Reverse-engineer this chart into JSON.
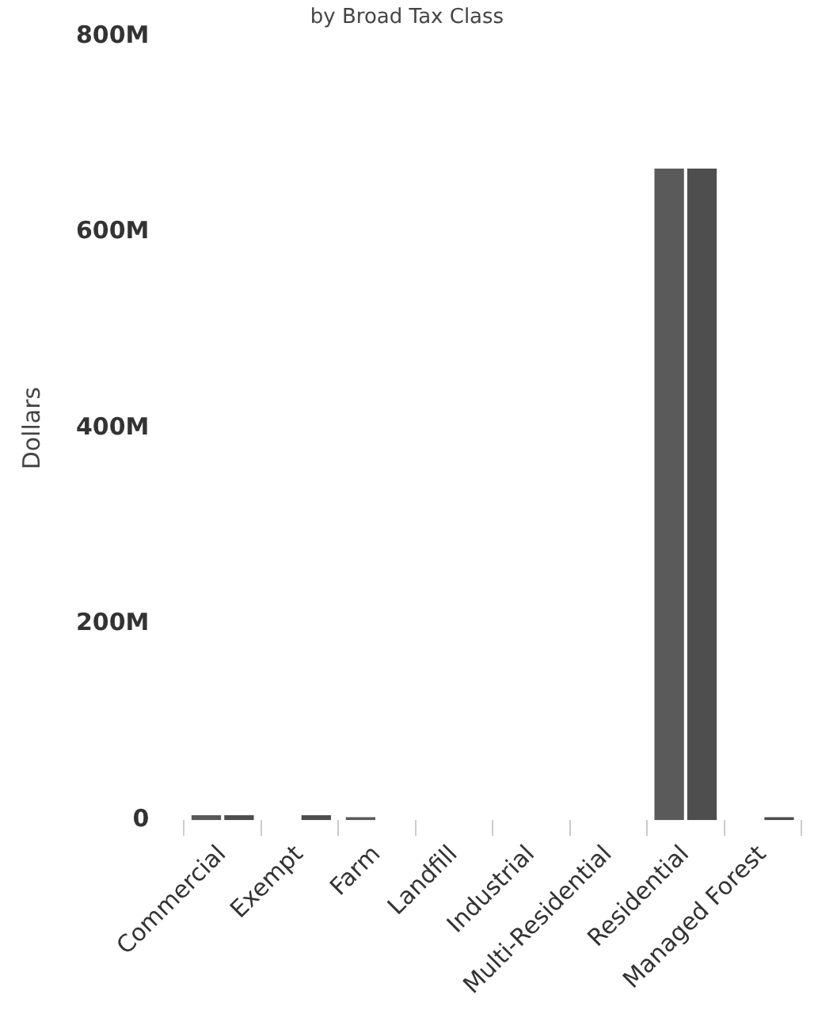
{
  "chart_data": {
    "type": "bar",
    "subtitle": "by Broad Tax Class",
    "ylabel": "Dollars",
    "categories": [
      "Commercial",
      "Exempt",
      "Farm",
      "Landfill",
      "Industrial",
      "Multi-Residential",
      "Residential",
      "Managed Forest"
    ],
    "series": [
      {
        "color": "#5a5a5a",
        "values": [
          5000000,
          null,
          3000000,
          null,
          null,
          null,
          665000000,
          null
        ]
      },
      {
        "color": "#4e4e4e",
        "values": [
          5000000,
          5000000,
          null,
          null,
          null,
          null,
          665000000,
          3000000
        ]
      }
    ],
    "ylim": [
      0,
      800000000
    ],
    "yticks": [
      {
        "value": 0,
        "label": "0"
      },
      {
        "value": 200000000,
        "label": "200M"
      },
      {
        "value": 400000000,
        "label": "400M"
      },
      {
        "value": 600000000,
        "label": "600M"
      },
      {
        "value": 800000000,
        "label": "800M"
      }
    ],
    "grid": false,
    "legend": false
  }
}
